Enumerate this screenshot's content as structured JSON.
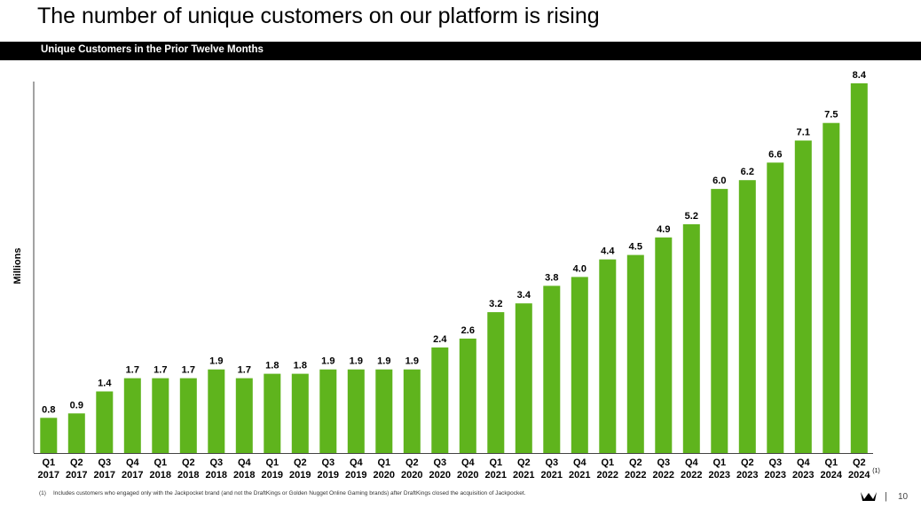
{
  "page": {
    "title": "The number of unique customers on our platform is rising",
    "banner": "Unique Customers in the Prior Twelve Months",
    "footnote_marker": "(1)",
    "footnote_text": "Includes customers who engaged only with the Jackpocket brand (and not the DraftKings or Golden Nugget Online Gaming brands) after DraftKings closed the acquisition of Jackpocket.",
    "page_separator": "|",
    "page_number": "10",
    "logo_icon": "crown-icon"
  },
  "chart_data": {
    "type": "bar",
    "title": "Unique Customers in the Prior Twelve Months",
    "ylabel": "Millions",
    "xlabel": "",
    "ylim": [
      0,
      8.4
    ],
    "grid": false,
    "bar_color": "#5fb41d",
    "categories": [
      [
        "Q1",
        "2017"
      ],
      [
        "Q2",
        "2017"
      ],
      [
        "Q3",
        "2017"
      ],
      [
        "Q4",
        "2017"
      ],
      [
        "Q1",
        "2018"
      ],
      [
        "Q2",
        "2018"
      ],
      [
        "Q3",
        "2018"
      ],
      [
        "Q4",
        "2018"
      ],
      [
        "Q1",
        "2019"
      ],
      [
        "Q2",
        "2019"
      ],
      [
        "Q3",
        "2019"
      ],
      [
        "Q4",
        "2019"
      ],
      [
        "Q1",
        "2020"
      ],
      [
        "Q2",
        "2020"
      ],
      [
        "Q3",
        "2020"
      ],
      [
        "Q4",
        "2020"
      ],
      [
        "Q1",
        "2021"
      ],
      [
        "Q2",
        "2021"
      ],
      [
        "Q3",
        "2021"
      ],
      [
        "Q4",
        "2021"
      ],
      [
        "Q1",
        "2022"
      ],
      [
        "Q2",
        "2022"
      ],
      [
        "Q3",
        "2022"
      ],
      [
        "Q4",
        "2022"
      ],
      [
        "Q1",
        "2023"
      ],
      [
        "Q2",
        "2023"
      ],
      [
        "Q3",
        "2023"
      ],
      [
        "Q4",
        "2023"
      ],
      [
        "Q1",
        "2024"
      ],
      [
        "Q2",
        "2024"
      ]
    ],
    "values": [
      0.8,
      0.9,
      1.4,
      1.7,
      1.7,
      1.7,
      1.9,
      1.7,
      1.8,
      1.8,
      1.9,
      1.9,
      1.9,
      1.9,
      2.4,
      2.6,
      3.2,
      3.4,
      3.8,
      4.0,
      4.4,
      4.5,
      4.9,
      5.2,
      6.0,
      6.2,
      6.6,
      7.1,
      7.5,
      8.4
    ],
    "value_labels": [
      "0.8",
      "0.9",
      "1.4",
      "1.7",
      "1.7",
      "1.7",
      "1.9",
      "1.7",
      "1.8",
      "1.8",
      "1.9",
      "1.9",
      "1.9",
      "1.9",
      "2.4",
      "2.6",
      "3.2",
      "3.4",
      "3.8",
      "4.0",
      "4.4",
      "4.5",
      "4.9",
      "5.2",
      "6.0",
      "6.2",
      "6.6",
      "7.1",
      "7.5",
      "8.4"
    ],
    "annotations": [
      {
        "category_index": 29,
        "text": "(1)"
      }
    ]
  }
}
